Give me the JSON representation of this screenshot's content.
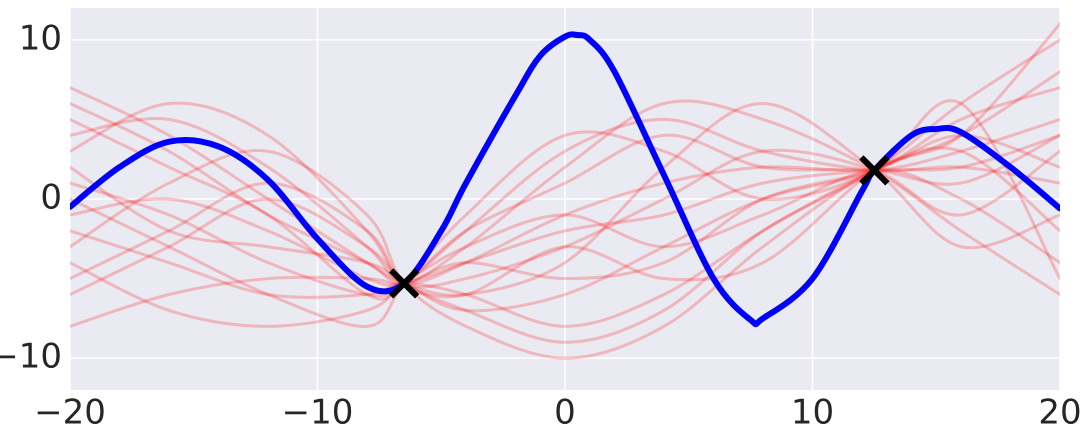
{
  "chart_data": {
    "type": "line",
    "xlim": [
      -20,
      20
    ],
    "ylim": [
      -12,
      12
    ],
    "xticks": [
      {
        "value": -20,
        "label": "−20"
      },
      {
        "value": -10,
        "label": "−10"
      },
      0,
      10,
      20
    ],
    "yticks": [
      {
        "value": -10,
        "label": "−10"
      },
      0,
      10
    ],
    "grid": true,
    "sample_opacity": 0.22,
    "series": [
      {
        "color": "#ff0000",
        "x": [
          -20,
          -16,
          -12,
          -8,
          -6.5,
          -4,
          0,
          4,
          8,
          12.5,
          16,
          20
        ],
        "values": [
          4,
          5,
          2,
          -3,
          -5.3,
          -4,
          -1,
          1,
          2,
          1.8,
          3,
          5
        ]
      },
      {
        "color": "#ff0000",
        "x": [
          -20,
          -16,
          -12,
          -8,
          -6.5,
          -4,
          0,
          4,
          8,
          12.5,
          16,
          20
        ],
        "values": [
          -2,
          -4,
          -6,
          -6,
          -5.3,
          -6,
          -8,
          -6,
          -2,
          1.8,
          4,
          8
        ]
      },
      {
        "color": "#ff0000",
        "x": [
          -20,
          -16,
          -12,
          -8,
          -6.5,
          -4,
          0,
          4,
          8,
          12.5,
          16,
          20
        ],
        "values": [
          6,
          3,
          -1,
          -4,
          -5.3,
          -3,
          2,
          6,
          5,
          1.8,
          -2,
          -6
        ]
      },
      {
        "color": "#ff0000",
        "x": [
          -20,
          -16,
          -12,
          -8,
          -6.5,
          -4,
          0,
          4,
          8,
          12.5,
          16,
          20
        ],
        "values": [
          -6,
          -3,
          0,
          -3,
          -5.3,
          -7,
          -9,
          -7,
          -2,
          1.8,
          6,
          10
        ]
      },
      {
        "color": "#ff0000",
        "x": [
          -20,
          -16,
          -12,
          -8,
          -6.5,
          -4,
          0,
          4,
          8,
          12.5,
          16,
          20
        ],
        "values": [
          1,
          -1,
          -4,
          -6,
          -5.3,
          -2,
          3,
          5,
          3,
          1.8,
          2,
          1
        ]
      },
      {
        "color": "#ff0000",
        "x": [
          -20,
          -16,
          -12,
          -8,
          -6.5,
          -4,
          0,
          4,
          8,
          12.5,
          16,
          20
        ],
        "values": [
          -4,
          -7,
          -8,
          -7,
          -5.3,
          -3,
          -1,
          -3,
          -1,
          1.8,
          0,
          -4
        ]
      },
      {
        "color": "#ff0000",
        "x": [
          -20,
          -16,
          -12,
          -8,
          -6.5,
          -4,
          0,
          4,
          8,
          12.5,
          16,
          20
        ],
        "values": [
          3,
          6,
          4,
          -2,
          -5.3,
          -5,
          -3,
          0,
          3,
          1.8,
          -1,
          3
        ]
      },
      {
        "color": "#ff0000",
        "x": [
          -20,
          -16,
          -12,
          -8,
          -6.5,
          -4,
          0,
          4,
          8,
          12.5,
          16,
          20
        ],
        "values": [
          -1,
          0,
          -2,
          -5,
          -5.3,
          -4,
          -5,
          -4,
          0,
          1.8,
          4,
          2
        ]
      },
      {
        "color": "#ff0000",
        "x": [
          -20,
          -16,
          -12,
          -8,
          -6.5,
          -4,
          0,
          4,
          8,
          12.5,
          16,
          20
        ],
        "values": [
          7,
          4,
          0,
          -4,
          -5.3,
          -6,
          -4,
          2,
          6,
          1.8,
          -3,
          -1
        ]
      },
      {
        "color": "#ff0000",
        "x": [
          -20,
          -16,
          -12,
          -8,
          -6.5,
          -4,
          0,
          4,
          8,
          12.5,
          16,
          20
        ],
        "values": [
          -8,
          -6,
          -5,
          -5,
          -5.3,
          -4,
          -2,
          -1,
          1,
          1.8,
          2,
          4
        ]
      },
      {
        "color": "#ff0000",
        "x": [
          -20,
          -16,
          -12,
          -8,
          -6.5,
          -4,
          0,
          4,
          8,
          12.5,
          16,
          20
        ],
        "values": [
          2,
          -2,
          -3,
          -4,
          -5.3,
          -7,
          -6,
          -3,
          0,
          1.8,
          5,
          7
        ]
      },
      {
        "color": "#ff0000",
        "x": [
          -20,
          -16,
          -12,
          -8,
          -6.5,
          -4,
          0,
          4,
          8,
          12.5,
          16,
          20
        ],
        "values": [
          -3,
          1,
          3,
          -1,
          -5.3,
          -8,
          -10,
          -8,
          -3,
          1.8,
          3,
          -2
        ]
      },
      {
        "color": "#ff0000",
        "x": [
          -20,
          -16,
          -12,
          -8,
          -6.5,
          -4,
          0,
          4,
          8,
          12.5,
          16,
          20
        ],
        "values": [
          5,
          2,
          -1,
          -6,
          -5.3,
          -2,
          1,
          4,
          2,
          1.8,
          1,
          4
        ]
      },
      {
        "color": "#ff0000",
        "x": [
          -20,
          -16,
          -12,
          -8,
          -6.5,
          -4,
          0,
          4,
          8,
          12.5,
          16,
          20
        ],
        "values": [
          0,
          -3,
          -6,
          -8,
          -5.3,
          -1,
          4,
          3,
          0,
          1.8,
          6,
          -5
        ]
      },
      {
        "color": "#ff0000",
        "x": [
          -20,
          -16,
          -12,
          -8,
          -6.5,
          -4,
          0,
          4,
          8,
          12.5,
          16,
          20
        ],
        "values": [
          -5,
          -2,
          1,
          -2,
          -5.3,
          -6,
          -3,
          -5,
          -4,
          1.8,
          4,
          11
        ]
      },
      {
        "color": "#0000ff",
        "x": [
          -20,
          -18,
          -16,
          -14,
          -12,
          -10,
          -8,
          -6.5,
          -5,
          -4,
          -2,
          -1,
          0,
          0.5,
          1,
          2,
          4,
          6,
          7.5,
          8,
          10,
          12,
          12.5,
          14,
          15,
          16,
          18,
          20
        ],
        "values": [
          -0.5,
          2,
          3.6,
          3.3,
          1.2,
          -2.5,
          -5.5,
          -5.3,
          -2,
          1,
          6.5,
          9,
          10.2,
          10.3,
          10,
          8,
          1.5,
          -5,
          -7.6,
          -7.5,
          -5,
          0.5,
          1.8,
          4,
          4.4,
          4.2,
          2,
          -0.6
        ]
      }
    ],
    "points": {
      "color": "#000000",
      "x": [
        -6.5,
        12.5
      ],
      "values": [
        -5.3,
        1.8
      ]
    }
  }
}
